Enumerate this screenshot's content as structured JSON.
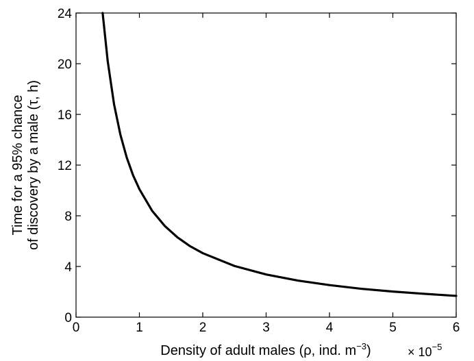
{
  "chart_data": {
    "type": "line",
    "xlabel": "Density of adult males (ρ, ind. m",
    "xlabel_superscript": "−3",
    "xlabel_suffix": ")",
    "ylabel_line1": "Time for a 95% chance",
    "ylabel_line2": "of discovery by a male (τ, h)",
    "x_multiplier_text": "× 10",
    "x_multiplier_exponent": "−5",
    "xlim": [
      0,
      6
    ],
    "ylim": [
      0,
      24
    ],
    "xticks": [
      "0",
      "1",
      "2",
      "3",
      "4",
      "5",
      "6"
    ],
    "yticks": [
      "0",
      "4",
      "8",
      "12",
      "16",
      "20",
      "24"
    ],
    "grid": false,
    "series": [
      {
        "x": [
          0.42,
          0.5,
          0.6,
          0.7,
          0.8,
          0.9,
          1.0,
          1.2,
          1.4,
          1.6,
          1.8,
          2.0,
          2.5,
          3.0,
          3.5,
          4.0,
          4.5,
          5.0,
          5.5,
          6.0
        ],
        "y": [
          24.0,
          20.2,
          16.8,
          14.4,
          12.6,
          11.2,
          10.1,
          8.4,
          7.2,
          6.3,
          5.6,
          5.05,
          4.04,
          3.37,
          2.89,
          2.53,
          2.24,
          2.02,
          1.84,
          1.68
        ]
      }
    ]
  }
}
